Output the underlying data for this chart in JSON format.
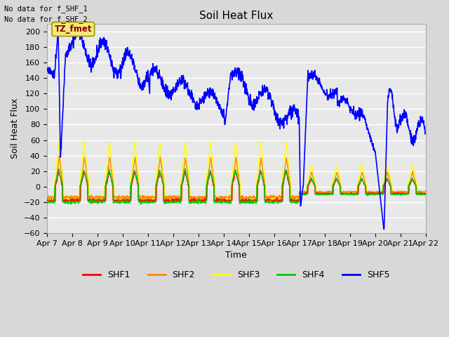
{
  "title": "Soil Heat Flux",
  "xlabel": "Time",
  "ylabel": "Soil Heat Flux",
  "ylim": [
    -60,
    210
  ],
  "note1": "No data for f_SHF_1",
  "note2": "No data for f_SHF_2",
  "annotation": "TZ_fmet",
  "colors": {
    "SHF1": "#ff0000",
    "SHF2": "#ff8800",
    "SHF3": "#ffff00",
    "SHF4": "#00cc00",
    "SHF5": "#0000ff"
  },
  "bg_color": "#d8d8d8",
  "plot_bg": "#e8e8e8",
  "grid_color": "#ffffff",
  "x_labels": [
    "Apr 7",
    "Apr 8",
    "Apr 9",
    "Apr 10",
    "Apr 11",
    "Apr 12",
    "Apr 13",
    "Apr 14",
    "Apr 15",
    "Apr 16",
    "Apr 17",
    "Apr 18",
    "Apr 19",
    "Apr 20",
    "Apr 21",
    "Apr 22"
  ]
}
